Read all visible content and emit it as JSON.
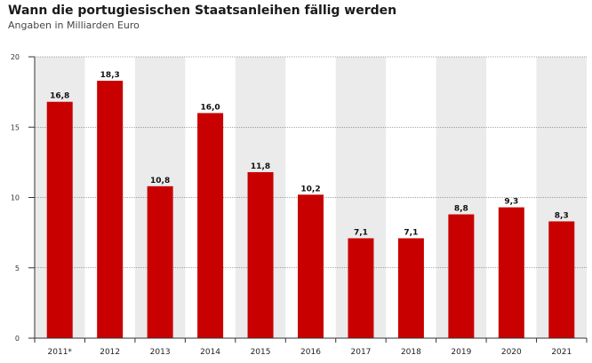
{
  "title": "Wann die portugiesischen Staatsanleihen fällig werden",
  "subtitle": "Angaben in Milliarden Euro",
  "colors": {
    "bar": "#c80000",
    "band": "#ebebeb",
    "grid": "#555555"
  },
  "chart_data": {
    "type": "bar",
    "title": "Wann die portugiesischen Staatsanleihen fällig werden",
    "subtitle": "Angaben in Milliarden Euro",
    "categories": [
      "2011*",
      "2012",
      "2013",
      "2014",
      "2015",
      "2016",
      "2017",
      "2018",
      "2019",
      "2020",
      "2021"
    ],
    "values": [
      16.8,
      18.3,
      10.8,
      16.0,
      11.8,
      10.2,
      7.1,
      7.1,
      8.8,
      9.3,
      8.3
    ],
    "value_labels": [
      "16,8",
      "18,3",
      "10,8",
      "16,0",
      "11,8",
      "10,2",
      "7,1",
      "7,1",
      "8,8",
      "9,3",
      "8,3"
    ],
    "xlabel": "",
    "ylabel": "",
    "ylim": [
      0,
      20
    ],
    "yticks": [
      0,
      5,
      10,
      15,
      20
    ],
    "grid": true
  }
}
